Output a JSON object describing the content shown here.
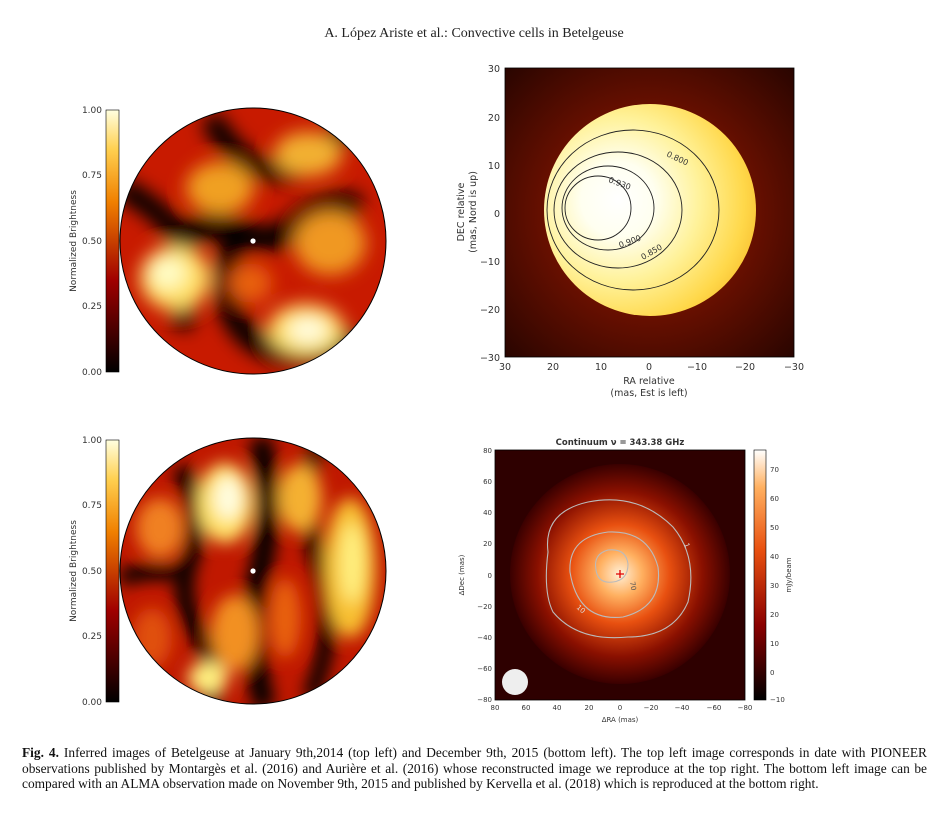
{
  "header": {
    "title": "A. López Ariste et al.: Convective cells in Betelgeuse"
  },
  "colors": {
    "hot_bright": "#fff6a0",
    "hot_mid": "#f0a000",
    "hot_low": "#b80000",
    "hot_dark": "#000000"
  },
  "top_left": {
    "colorbar_label": "Normalized Brightness",
    "ticks": [
      "1.00",
      "0.75",
      "0.50",
      "0.25",
      "0.00"
    ]
  },
  "bottom_left": {
    "colorbar_label": "Normalized Brightness",
    "ticks": [
      "1.00",
      "0.75",
      "0.50",
      "0.25",
      "0.00"
    ]
  },
  "top_right": {
    "ylabel_line1": "DEC relative",
    "ylabel_line2": "(mas, Nord is up)",
    "xlabel_line1": "RA relative",
    "xlabel_line2": "(mas, Est is left)",
    "yticks": [
      "30",
      "20",
      "10",
      "0",
      "−10",
      "−20",
      "−30"
    ],
    "xticks": [
      "30",
      "20",
      "10",
      "0",
      "−10",
      "−20",
      "−30"
    ],
    "contours": [
      "0.800",
      "0.930",
      "0.900",
      "0.850"
    ]
  },
  "bottom_right": {
    "title": "Continuum ν = 343.38 GHz",
    "ylabel": "ΔDec (mas)",
    "xlabel": "ΔRA (mas)",
    "yticks": [
      "80",
      "60",
      "40",
      "20",
      "0",
      "−20",
      "−40",
      "−60",
      "−80"
    ],
    "xticks": [
      "80",
      "60",
      "40",
      "20",
      "0",
      "−20",
      "−40",
      "−60",
      "−80"
    ],
    "cbar_label": "mJy/beam",
    "cbar_ticks": [
      "70",
      "60",
      "50",
      "40",
      "30",
      "20",
      "10",
      "0",
      "−10"
    ],
    "contours": [
      "1",
      "10",
      "70"
    ]
  },
  "caption": {
    "label": "Fig. 4.",
    "text": " Inferred images of Betelgeuse at January 9th,2014 (top left) and December 9th, 2015 (bottom left). The top left image corresponds in date with PIONEER observations published by Montargès et al. (2016) and Aurière et al. (2016) whose reconstructed image we reproduce at the top right. The bottom left image can be compared with an ALMA observation made on November 9th, 2015 and published by Kervella et al. (2018) which is reproduced at the bottom right."
  }
}
